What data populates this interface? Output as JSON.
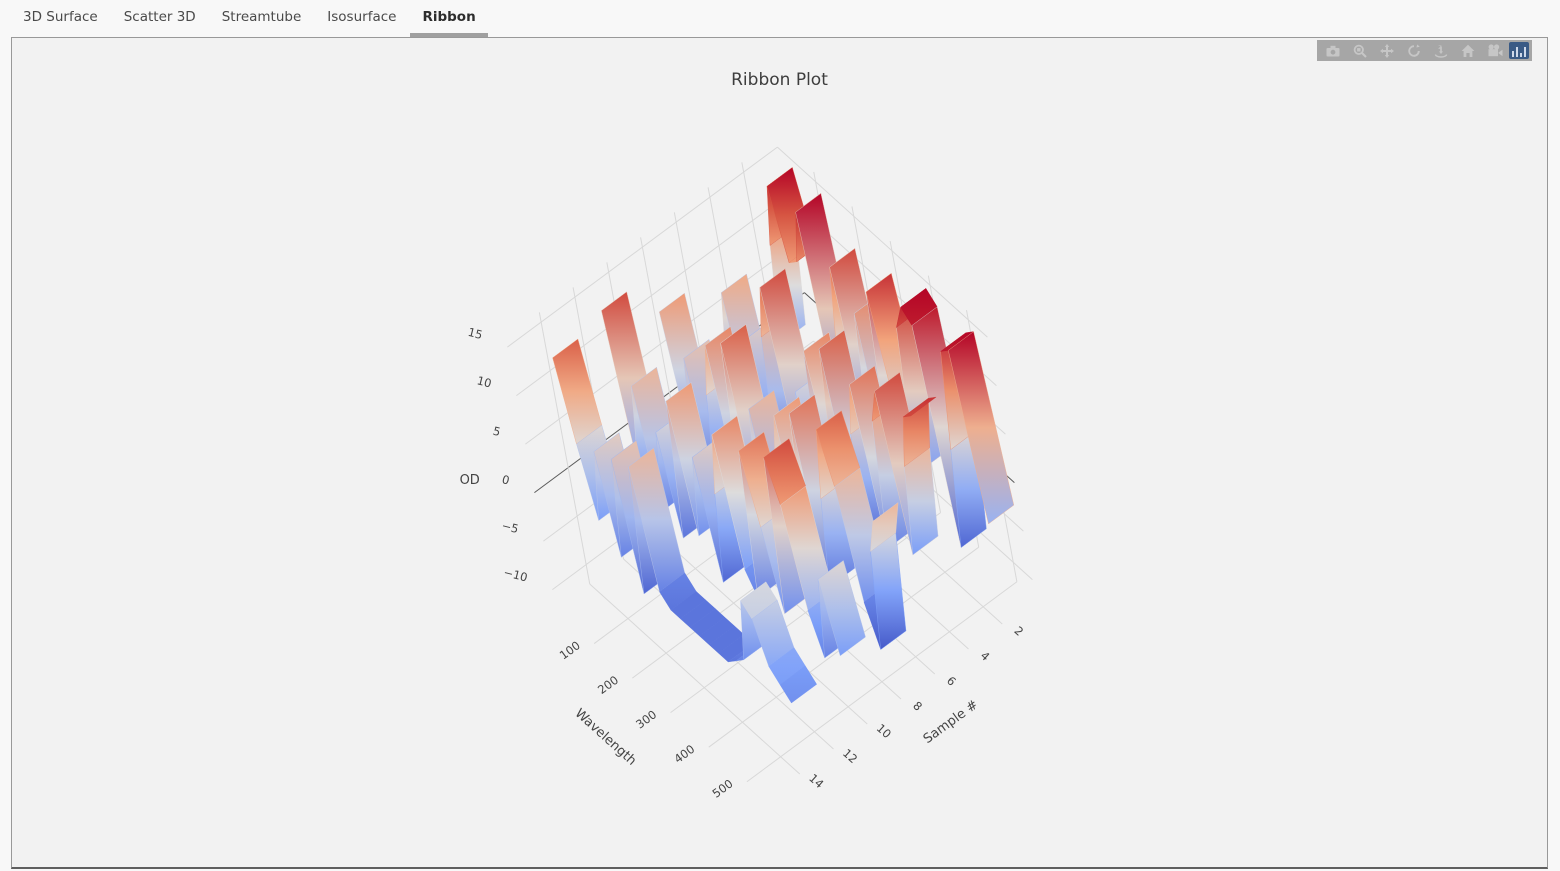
{
  "tabs": [
    {
      "label": "3D Surface",
      "active": false
    },
    {
      "label": "Scatter 3D",
      "active": false
    },
    {
      "label": "Streamtube",
      "active": false
    },
    {
      "label": "Isosurface",
      "active": false
    },
    {
      "label": "Ribbon",
      "active": true
    }
  ],
  "modebar": {
    "background": "#a6a6a6",
    "icon_color": "#c6c6c6",
    "logo_color": "#3a5a85",
    "icons": [
      "camera-icon",
      "zoom-icon",
      "pan-icon",
      "orbit-rotation-icon",
      "turntable-rotation-icon",
      "home-icon",
      "camera-reel-icon",
      "plotly-logo-icon"
    ]
  },
  "chart_data": {
    "type": "ribbon",
    "title": "Ribbon Plot",
    "xlabel": "Wavelength",
    "ylabel": "Sample #",
    "zlabel": "OD",
    "x_ticks": [
      100,
      200,
      300,
      400,
      500
    ],
    "y_ticks": [
      2,
      4,
      6,
      8,
      10,
      12,
      14
    ],
    "z_ticks": [
      -10,
      -5,
      0,
      5,
      10,
      15
    ],
    "x_range": [
      0,
      550
    ],
    "y_range": [
      0,
      16
    ],
    "z_range": [
      -12,
      16
    ],
    "grid": true,
    "legend_position": "none",
    "cmin": -10,
    "cmax": 15,
    "colorscale": [
      [
        0,
        "#3b4cc0"
      ],
      [
        0.25,
        "#7ea1fa"
      ],
      [
        0.5,
        "#dddcdc"
      ],
      [
        0.7,
        "#f2a47c"
      ],
      [
        0.85,
        "#d85b44"
      ],
      [
        1,
        "#b40426"
      ]
    ],
    "x_step": 25,
    "ribbon_half_width": 0.75,
    "ribbons": [
      {
        "sample": 1,
        "values": [
          -3,
          8,
          15,
          8,
          9,
          15,
          -6,
          3,
          12,
          -5,
          9,
          -7,
          13,
          2,
          -4,
          12,
          15,
          14,
          -8,
          3,
          14,
          15,
          -2
        ]
      },
      {
        "sample": 4,
        "values": [
          -1,
          7,
          -6,
          4,
          -8,
          6,
          12,
          -5,
          3,
          -7,
          9,
          -3,
          11,
          -8,
          4,
          10,
          -6,
          8,
          12,
          -4,
          6,
          12,
          13
        ]
      },
      {
        "sample": 7,
        "values": [
          8,
          -5,
          5,
          -7,
          3,
          9,
          -6,
          11,
          -4,
          6,
          -8,
          2,
          8,
          -5,
          10,
          -7,
          3,
          11,
          6,
          -5,
          -9,
          2,
          6
        ]
      },
      {
        "sample": 10,
        "values": [
          12,
          -3,
          6,
          -6,
          3,
          -7,
          8,
          -5,
          4,
          -8,
          2,
          9,
          -4,
          -6,
          10,
          3,
          -5,
          12,
          8,
          -2,
          -6,
          3,
          -4
        ]
      },
      {
        "sample": 13,
        "values": [
          11,
          3,
          -4,
          4,
          -6,
          5,
          -8,
          6,
          -6,
          -7,
          -7,
          -7,
          -7,
          -7,
          -7,
          -7,
          -6,
          -5,
          2,
          1,
          -3,
          -4,
          -5
        ]
      }
    ]
  }
}
